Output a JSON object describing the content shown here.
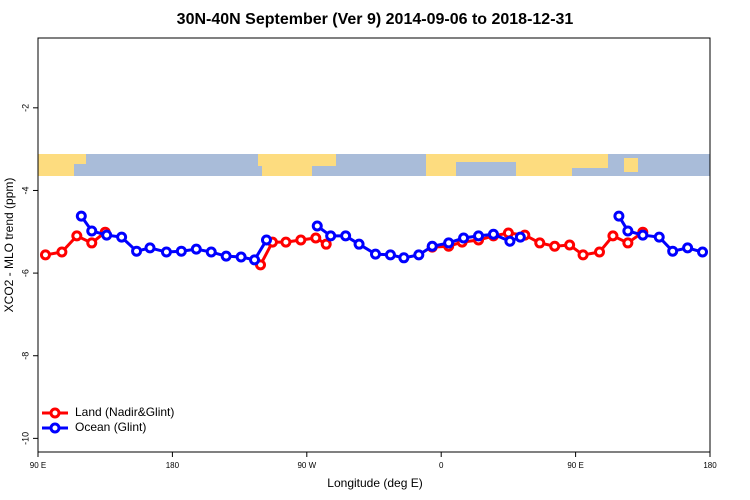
{
  "chart_data": {
    "type": "line",
    "title": "30N-40N September (Ver 9)   2014-09-06 to 2018-12-31",
    "x_label": "Longitude (deg E)",
    "y_label": "XCO2 - MLO trend (ppm)",
    "xlim": [
      90,
      540
    ],
    "xticks": [
      {
        "value": 90,
        "label": "90 E"
      },
      180,
      {
        "value": 270,
        "label": "90 W"
      },
      {
        "value": 360,
        "label": "0"
      },
      {
        "value": 450,
        "label": "90 E"
      },
      {
        "value": 540,
        "label": "180"
      }
    ],
    "ylim": [
      -10.33,
      -0.31
    ],
    "yticks": [
      -2,
      -4,
      -6,
      -8,
      -10
    ],
    "legend": "bottomleft",
    "series": [
      {
        "name": "Land (Nadir&Glint)",
        "color": "#ff0000",
        "x": [
          95,
          106,
          116,
          126,
          135,
          null,
          239,
          247,
          256,
          266,
          276,
          283,
          null,
          354,
          365,
          374,
          385,
          395,
          405,
          416,
          426,
          436,
          446,
          455,
          466,
          475,
          485,
          495
        ],
        "values": [
          -5.56,
          -5.49,
          -5.1,
          -5.27,
          -5.01,
          null,
          -5.8,
          -5.25,
          -5.25,
          -5.2,
          -5.15,
          -5.3,
          null,
          -5.37,
          -5.35,
          -5.25,
          -5.2,
          -5.1,
          -5.03,
          -5.08,
          -5.27,
          -5.35,
          -5.32,
          -5.56,
          -5.49,
          -5.1,
          -5.27,
          -5.01
        ]
      },
      {
        "name": "Ocean (Glint)",
        "color": "#0000ff",
        "x": [
          119,
          126,
          136,
          146,
          156,
          165,
          176,
          186,
          196,
          206,
          216,
          226,
          235,
          243,
          null,
          277,
          286,
          296,
          305,
          316,
          326,
          335,
          345,
          354,
          365,
          375,
          385,
          395,
          406,
          413,
          null,
          479,
          485,
          495,
          506,
          515,
          525,
          535
        ],
        "values": [
          -4.62,
          -4.98,
          -5.08,
          -5.13,
          -5.47,
          -5.39,
          -5.49,
          -5.47,
          -5.42,
          -5.49,
          -5.59,
          -5.61,
          -5.68,
          -5.2,
          null,
          -4.86,
          -5.1,
          -5.1,
          -5.3,
          -5.54,
          -5.56,
          -5.63,
          -5.56,
          -5.35,
          -5.27,
          -5.15,
          -5.1,
          -5.06,
          -5.23,
          -5.13,
          null,
          -4.62,
          -4.98,
          -5.08,
          -5.13,
          -5.47,
          -5.39,
          -5.49
        ]
      }
    ]
  }
}
